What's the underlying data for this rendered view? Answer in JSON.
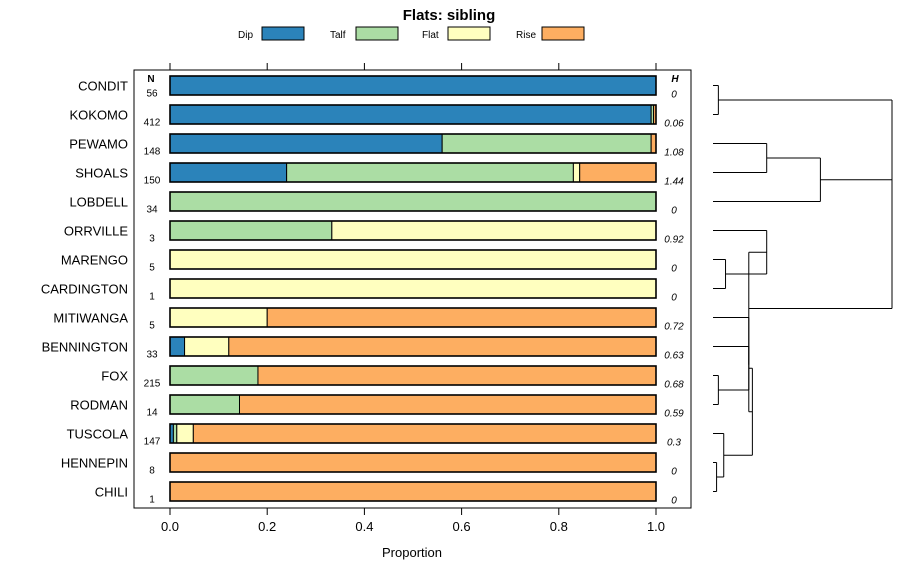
{
  "chart_data": {
    "type": "bar",
    "orientation": "horizontal",
    "stacked": true,
    "title": "Flats: sibling",
    "xlabel": "Proportion",
    "ylabel": "",
    "xlim": [
      0,
      1
    ],
    "xticks": [
      "0.0",
      "0.2",
      "0.4",
      "0.6",
      "0.8",
      "1.0"
    ],
    "legend": {
      "position": "top",
      "entries": [
        "Dip",
        "Talf",
        "Flat",
        "Rise"
      ]
    },
    "colors": {
      "Dip": "#2b83ba",
      "Talf": "#abdda4",
      "Flat": "#ffffbf",
      "Rise": "#fdae61"
    },
    "n_header": "N",
    "h_header": "H",
    "categories": [
      "CONDIT",
      "KOKOMO",
      "PEWAMO",
      "SHOALS",
      "LOBDELL",
      "ORRVILLE",
      "MARENGO",
      "CARDINGTON",
      "MITIWANGA",
      "BENNINGTON",
      "FOX",
      "RODMAN",
      "TUSCOLA",
      "HENNEPIN",
      "CHILI"
    ],
    "n": [
      "56",
      "412",
      "148",
      "150",
      "34",
      "3",
      "5",
      "1",
      "5",
      "33",
      "215",
      "14",
      "147",
      "8",
      "1"
    ],
    "h": [
      "0",
      "0.06",
      "1.08",
      "1.44",
      "0",
      "0.92",
      "0",
      "0",
      "0.72",
      "0.63",
      "0.68",
      "0.59",
      "0.3",
      "0",
      "0"
    ],
    "series": [
      {
        "name": "Dip",
        "values": [
          1.0,
          0.99,
          0.56,
          0.24,
          0,
          0,
          0,
          0,
          0,
          0.03,
          0,
          0,
          0.007,
          0,
          0
        ]
      },
      {
        "name": "Talf",
        "values": [
          0,
          0.005,
          0.43,
          0.59,
          1.0,
          0.333,
          0,
          0,
          0,
          0,
          0.181,
          0.143,
          0.007,
          0,
          0
        ]
      },
      {
        "name": "Flat",
        "values": [
          0,
          0,
          0,
          0.013,
          0,
          0.667,
          1.0,
          1.0,
          0.2,
          0.091,
          0,
          0,
          0.034,
          0,
          0
        ]
      },
      {
        "name": "Rise",
        "values": [
          0,
          0.005,
          0.01,
          0.157,
          0,
          0,
          0,
          0,
          0.8,
          0.879,
          0.819,
          0.857,
          0.952,
          1.0,
          1.0
        ]
      }
    ],
    "dendrogram": {
      "merges": [
        [
          [
            0
          ],
          [
            1
          ],
          0.03
        ],
        [
          [
            2
          ],
          [
            3
          ],
          0.3
        ],
        [
          [
            2,
            3
          ],
          [
            4
          ],
          0.6
        ],
        [
          [
            0,
            1
          ],
          [
            2,
            3,
            4
          ],
          1.0
        ],
        [
          [
            6
          ],
          [
            7
          ],
          0.07
        ],
        [
          [
            5
          ],
          [
            6,
            7
          ],
          0.3
        ],
        [
          [
            13
          ],
          [
            14
          ],
          0.02
        ],
        [
          [
            12
          ],
          [
            13,
            14
          ],
          0.06
        ],
        [
          [
            10
          ],
          [
            11
          ],
          0.03
        ],
        [
          [
            9
          ],
          [
            10,
            11
          ],
          0.2
        ],
        [
          [
            9,
            10,
            11
          ],
          [
            12,
            13,
            14
          ],
          0.22
        ],
        [
          [
            8
          ],
          [
            9,
            10,
            11,
            12,
            13,
            14
          ],
          0.2
        ],
        [
          [
            8,
            9,
            10,
            11,
            12,
            13,
            14
          ],
          [
            5,
            6,
            7
          ],
          0.2
        ],
        [
          [
            5,
            6,
            7,
            8,
            9,
            10,
            11,
            12,
            13,
            14
          ],
          [
            0,
            1,
            2,
            3,
            4
          ],
          1.0
        ]
      ]
    }
  }
}
